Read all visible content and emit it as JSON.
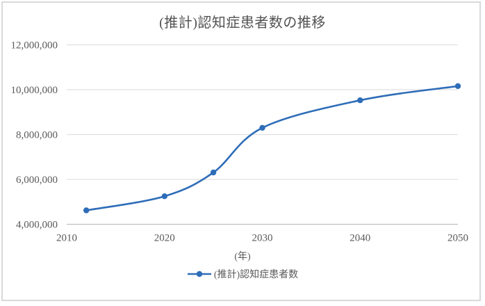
{
  "chart": {
    "frame_border_color": "#d9d9d9",
    "background": "#ffffff"
  },
  "chart_data": {
    "type": "line",
    "title": "(推計)認知症患者数の推移",
    "xlabel": "(年)",
    "ylabel": "",
    "legend_position": "bottom",
    "grid": "horizontal",
    "smooth": true,
    "line_color": "#2e6db8",
    "marker": "circle",
    "text_color": "#595959",
    "gridline_color": "#e0e0e0",
    "axis_line_color": "#bfbfbf",
    "x": [
      2012,
      2020,
      2025,
      2030,
      2040,
      2050
    ],
    "series": [
      {
        "name": "(推計)認知症患者数",
        "values": [
          4620000,
          5250000,
          6310000,
          8300000,
          9530000,
          10160000
        ]
      }
    ],
    "xlim": [
      2010,
      2050
    ],
    "ylim": [
      4000000,
      12000000
    ],
    "x_ticks": [
      {
        "value": 2010,
        "label": "2010"
      },
      {
        "value": 2020,
        "label": "2020"
      },
      {
        "value": 2030,
        "label": "2030"
      },
      {
        "value": 2040,
        "label": "2040"
      },
      {
        "value": 2050,
        "label": "2050"
      }
    ],
    "y_ticks": [
      {
        "value": 4000000,
        "label": "4,000,000"
      },
      {
        "value": 6000000,
        "label": "6,000,000"
      },
      {
        "value": 8000000,
        "label": "8,000,000"
      },
      {
        "value": 10000000,
        "label": "10,000,000"
      },
      {
        "value": 12000000,
        "label": "12,000,000"
      }
    ]
  }
}
